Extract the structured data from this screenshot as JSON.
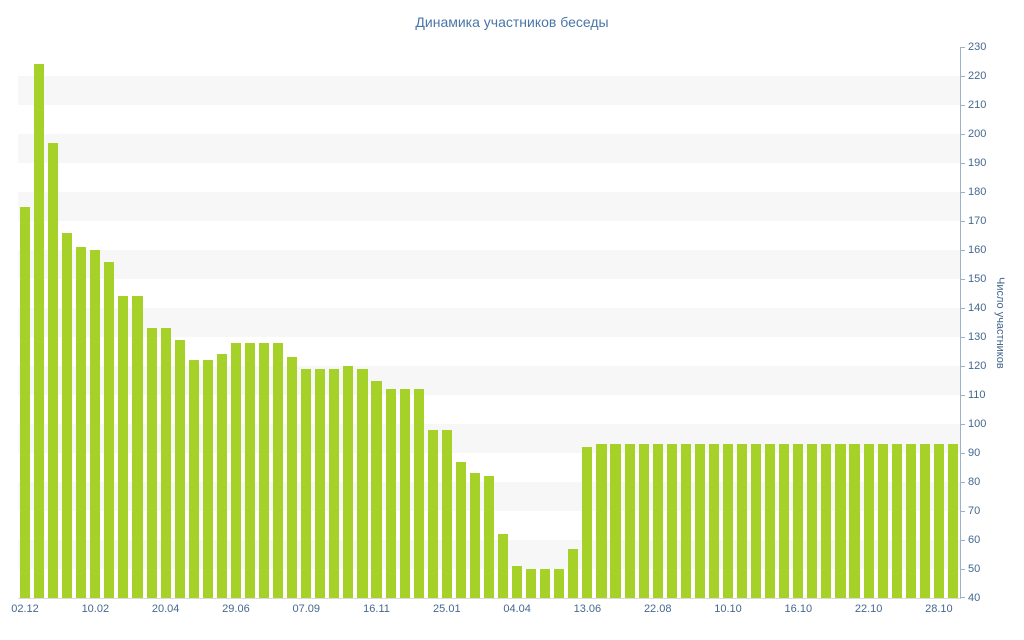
{
  "title": "Динамика участников беседы",
  "chart_data": {
    "type": "bar",
    "title": "Динамика участников беседы",
    "xlabel": "",
    "ylabel": "Число участников",
    "ylim": [
      40,
      230
    ],
    "y_tick_step": 10,
    "grid": "horizontal-zebra-stripes",
    "legend": "none",
    "bar_color": "#a6d128",
    "stripe_color": "#f7f7f7",
    "axis_line_color": "#9db1c7",
    "bottom_line_color": "#d9d9d9",
    "axis_text_color": "#45688e",
    "title_color": "#4a76a8",
    "x_tick_labels": [
      "02.12",
      "10.02",
      "20.04",
      "29.06",
      "07.09",
      "16.11",
      "25.01",
      "04.04",
      "13.06",
      "22.08",
      "10.10",
      "16.10",
      "22.10",
      "28.10"
    ],
    "x_tick_every": 5,
    "values": [
      175,
      224,
      197,
      166,
      161,
      160,
      156,
      144,
      144,
      133,
      133,
      129,
      122,
      122,
      124,
      128,
      128,
      128,
      128,
      123,
      119,
      119,
      119,
      120,
      119,
      115,
      112,
      112,
      112,
      98,
      98,
      87,
      83,
      82,
      62,
      51,
      50,
      50,
      50,
      57,
      92,
      93,
      93,
      93,
      93,
      93,
      93,
      93,
      93,
      93,
      93,
      93,
      93,
      93,
      93,
      93,
      93,
      93,
      93,
      93,
      93,
      93,
      93,
      93,
      93,
      93,
      93
    ]
  }
}
